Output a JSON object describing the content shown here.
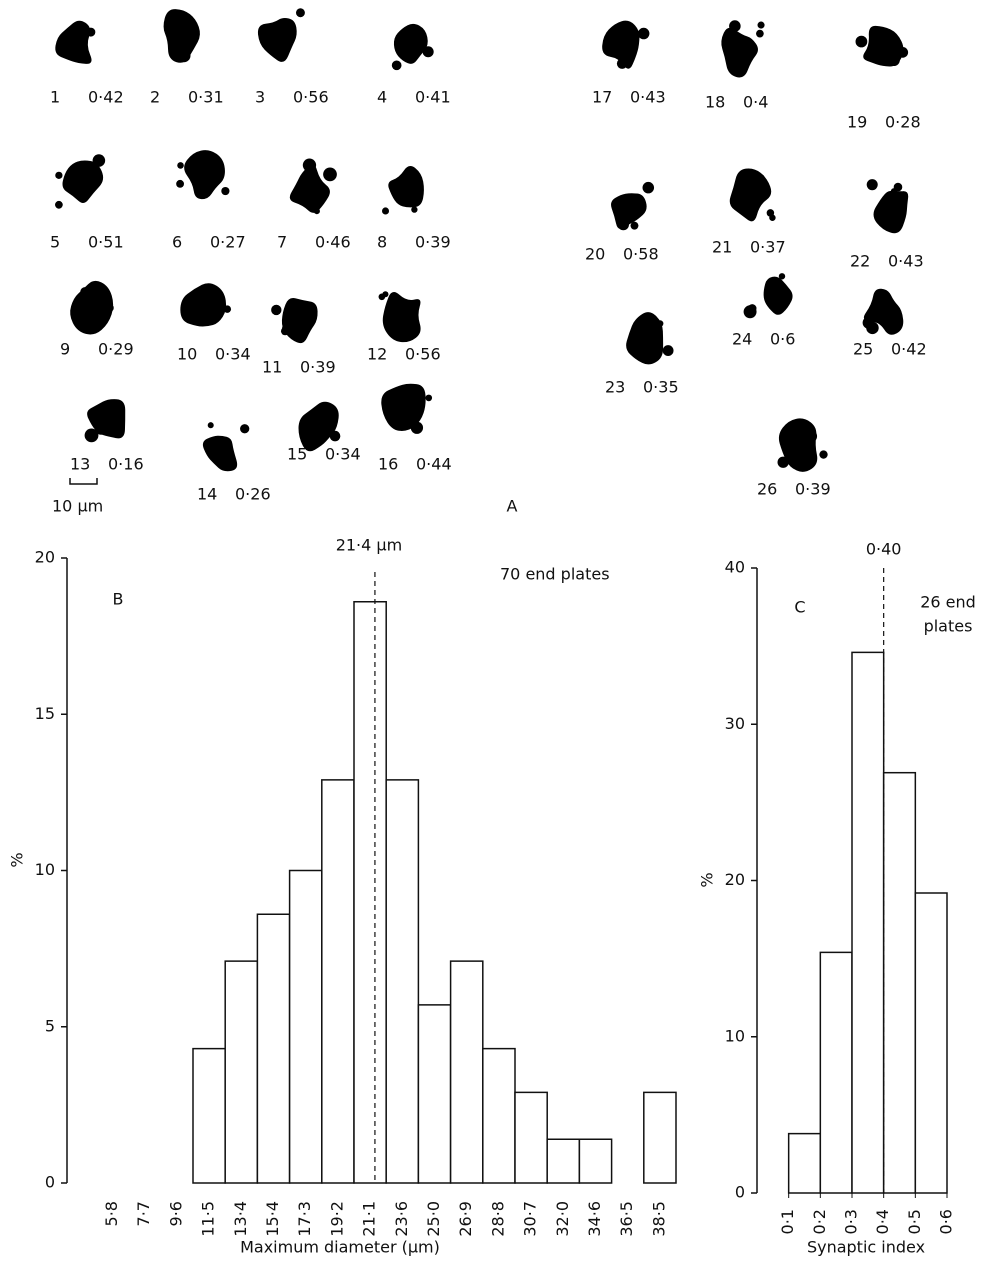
{
  "panel_a": {
    "label": "A",
    "scale_bar": "10 μm",
    "items": [
      {
        "id": 1,
        "value": "0·42"
      },
      {
        "id": 2,
        "value": "0·31"
      },
      {
        "id": 3,
        "value": "0·56"
      },
      {
        "id": 4,
        "value": "0·41"
      },
      {
        "id": 5,
        "value": "0·51"
      },
      {
        "id": 6,
        "value": "0·27"
      },
      {
        "id": 7,
        "value": "0·46"
      },
      {
        "id": 8,
        "value": "0·39"
      },
      {
        "id": 9,
        "value": "0·29"
      },
      {
        "id": 10,
        "value": "0·34"
      },
      {
        "id": 11,
        "value": "0·39"
      },
      {
        "id": 12,
        "value": "0·56"
      },
      {
        "id": 13,
        "value": "0·16"
      },
      {
        "id": 14,
        "value": "0·26"
      },
      {
        "id": 15,
        "value": "0·34"
      },
      {
        "id": 16,
        "value": "0·44"
      },
      {
        "id": 17,
        "value": "0·43"
      },
      {
        "id": 18,
        "value": "0·4"
      },
      {
        "id": 19,
        "value": "0·28"
      },
      {
        "id": 20,
        "value": "0·58"
      },
      {
        "id": 21,
        "value": "0·37"
      },
      {
        "id": 22,
        "value": "0·43"
      },
      {
        "id": 23,
        "value": "0·35"
      },
      {
        "id": 24,
        "value": "0·6"
      },
      {
        "id": 25,
        "value": "0·42"
      },
      {
        "id": 26,
        "value": "0·39"
      }
    ]
  },
  "chart_data": [
    {
      "type": "bar",
      "panel_label": "B",
      "annotation": "70 end plates",
      "x_label": "Maximum diameter (μm)",
      "y_label": "%",
      "categories": [
        "5·8",
        "7·7",
        "9·6",
        "11·5",
        "13·4",
        "15·4",
        "17·3",
        "19·2",
        "21·1",
        "23·6",
        "25·0",
        "26·9",
        "28·8",
        "30·7",
        "32·0",
        "34·6",
        "36·5",
        "38·5"
      ],
      "values": [
        0,
        0,
        0,
        4.3,
        7.1,
        8.6,
        10,
        12.9,
        18.6,
        12.9,
        5.7,
        7.1,
        4.3,
        2.9,
        1.4,
        1.4,
        0,
        2.9
      ],
      "median_label": "21·4 μm",
      "ylim": [
        0,
        20
      ],
      "yticks": [
        0,
        5,
        10,
        15,
        20
      ],
      "color": "#ffffff"
    },
    {
      "type": "histogram",
      "panel_label": "C",
      "annotation": [
        "26 end",
        "plates"
      ],
      "x_label": "Synaptic index",
      "y_label": "%",
      "bins": [
        0.1,
        0.2,
        0.3,
        0.4,
        0.5,
        0.6
      ],
      "values": [
        3.8,
        15.4,
        34.6,
        26.9,
        19.2
      ],
      "median": {
        "value": 0.4,
        "label": "0·40"
      },
      "xlim": [
        0,
        0.6
      ],
      "xticks": [
        {
          "value": 0.1,
          "label": "0·1"
        },
        {
          "value": 0.2,
          "label": "0·2"
        },
        {
          "value": 0.3,
          "label": "0·3"
        },
        {
          "value": 0.4,
          "label": "0·4"
        },
        {
          "value": 0.5,
          "label": "0·5"
        },
        {
          "value": 0.6,
          "label": "0·6"
        }
      ],
      "ylim": [
        0,
        40
      ],
      "yticks": [
        0,
        10,
        20,
        30,
        40
      ],
      "color": "#ffffff"
    }
  ]
}
